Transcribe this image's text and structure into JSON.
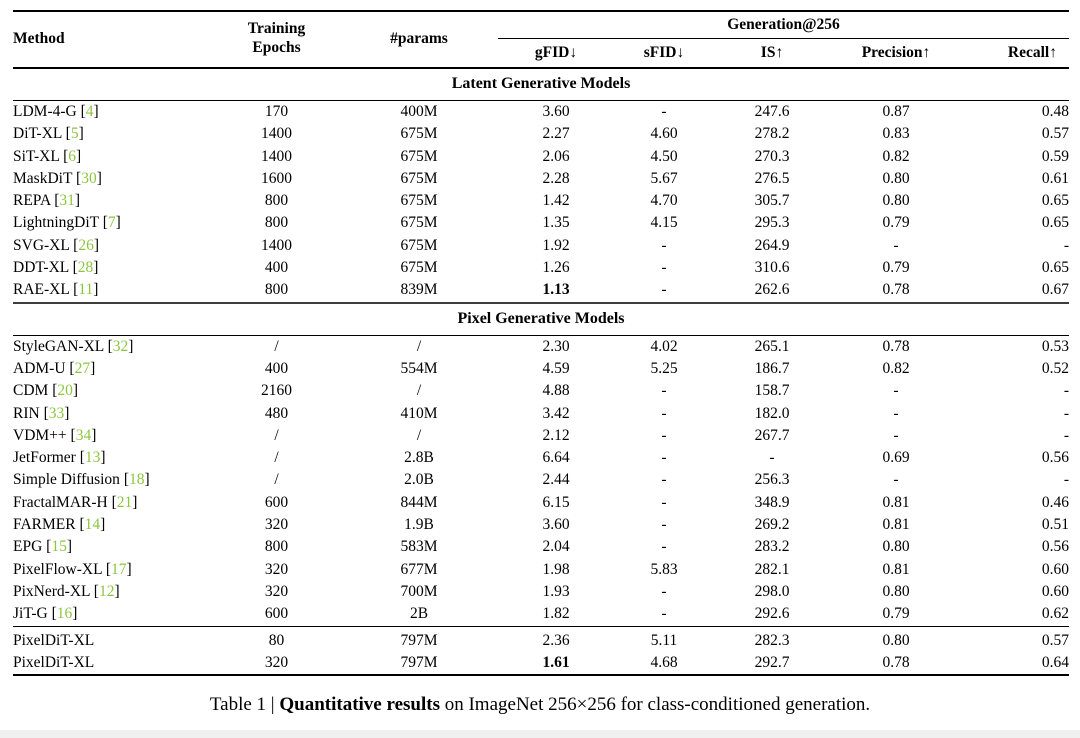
{
  "table": {
    "columns": {
      "method": "Method",
      "epochs": "Training\nEpochs",
      "params": "#params",
      "group": "Generation@256",
      "sub": [
        "gFID↓",
        "sFID↓",
        "IS↑",
        "Precision↑",
        "Recall↑"
      ]
    },
    "citation_color": "#8cc63f",
    "sections": [
      {
        "title": "Latent Generative Models",
        "heavy_top": false,
        "rows": [
          {
            "method": "LDM-4-G",
            "cite": "4",
            "epochs": "170",
            "params": "400M",
            "gfid": "3.60",
            "sfid": "-",
            "is": "247.6",
            "precision": "0.87",
            "recall": "0.48",
            "bold_gfid": false
          },
          {
            "method": "DiT-XL",
            "cite": "5",
            "epochs": "1400",
            "params": "675M",
            "gfid": "2.27",
            "sfid": "4.60",
            "is": "278.2",
            "precision": "0.83",
            "recall": "0.57",
            "bold_gfid": false
          },
          {
            "method": "SiT-XL",
            "cite": "6",
            "epochs": "1400",
            "params": "675M",
            "gfid": "2.06",
            "sfid": "4.50",
            "is": "270.3",
            "precision": "0.82",
            "recall": "0.59",
            "bold_gfid": false
          },
          {
            "method": "MaskDiT",
            "cite": "30",
            "epochs": "1600",
            "params": "675M",
            "gfid": "2.28",
            "sfid": "5.67",
            "is": "276.5",
            "precision": "0.80",
            "recall": "0.61",
            "bold_gfid": false
          },
          {
            "method": "REPA",
            "cite": "31",
            "epochs": "800",
            "params": "675M",
            "gfid": "1.42",
            "sfid": "4.70",
            "is": "305.7",
            "precision": "0.80",
            "recall": "0.65",
            "bold_gfid": false
          },
          {
            "method": "LightningDiT",
            "cite": "7",
            "epochs": "800",
            "params": "675M",
            "gfid": "1.35",
            "sfid": "4.15",
            "is": "295.3",
            "precision": "0.79",
            "recall": "0.65",
            "bold_gfid": false
          },
          {
            "method": "SVG-XL",
            "cite": "26",
            "epochs": "1400",
            "params": "675M",
            "gfid": "1.92",
            "sfid": "-",
            "is": "264.9",
            "precision": "-",
            "recall": "-",
            "bold_gfid": false
          },
          {
            "method": "DDT-XL",
            "cite": "28",
            "epochs": "400",
            "params": "675M",
            "gfid": "1.26",
            "sfid": "-",
            "is": "310.6",
            "precision": "0.79",
            "recall": "0.65",
            "bold_gfid": false
          },
          {
            "method": "RAE-XL",
            "cite": "11",
            "epochs": "800",
            "params": "839M",
            "gfid": "1.13",
            "sfid": "-",
            "is": "262.6",
            "precision": "0.78",
            "recall": "0.67",
            "bold_gfid": true
          }
        ]
      },
      {
        "title": "Pixel Generative Models",
        "heavy_top": true,
        "rows": [
          {
            "method": "StyleGAN-XL",
            "cite": "32",
            "epochs": "/",
            "params": "/",
            "gfid": "2.30",
            "sfid": "4.02",
            "is": "265.1",
            "precision": "0.78",
            "recall": "0.53",
            "bold_gfid": false
          },
          {
            "method": "ADM-U",
            "cite": "27",
            "epochs": "400",
            "params": "554M",
            "gfid": "4.59",
            "sfid": "5.25",
            "is": "186.7",
            "precision": "0.82",
            "recall": "0.52",
            "bold_gfid": false
          },
          {
            "method": "CDM",
            "cite": "20",
            "epochs": "2160",
            "params": "/",
            "gfid": "4.88",
            "sfid": "-",
            "is": "158.7",
            "precision": "-",
            "recall": "-",
            "bold_gfid": false
          },
          {
            "method": "RIN",
            "cite": "33",
            "epochs": "480",
            "params": "410M",
            "gfid": "3.42",
            "sfid": "-",
            "is": "182.0",
            "precision": "-",
            "recall": "-",
            "bold_gfid": false
          },
          {
            "method": "VDM++",
            "cite": "34",
            "epochs": "/",
            "params": "/",
            "gfid": "2.12",
            "sfid": "-",
            "is": "267.7",
            "precision": "-",
            "recall": "-",
            "bold_gfid": false
          },
          {
            "method": "JetFormer",
            "cite": "13",
            "epochs": "/",
            "params": "2.8B",
            "gfid": "6.64",
            "sfid": "-",
            "is": "-",
            "precision": "0.69",
            "recall": "0.56",
            "bold_gfid": false
          },
          {
            "method": "Simple Diffusion",
            "cite": "18",
            "epochs": "/",
            "params": "2.0B",
            "gfid": "2.44",
            "sfid": "-",
            "is": "256.3",
            "precision": "-",
            "recall": "-",
            "bold_gfid": false
          },
          {
            "method": "FractalMAR-H",
            "cite": "21",
            "epochs": "600",
            "params": "844M",
            "gfid": "6.15",
            "sfid": "-",
            "is": "348.9",
            "precision": "0.81",
            "recall": "0.46",
            "bold_gfid": false
          },
          {
            "method": "FARMER",
            "cite": "14",
            "epochs": "320",
            "params": "1.9B",
            "gfid": "3.60",
            "sfid": "-",
            "is": "269.2",
            "precision": "0.81",
            "recall": "0.51",
            "bold_gfid": false
          },
          {
            "method": "EPG",
            "cite": "15",
            "epochs": "800",
            "params": "583M",
            "gfid": "2.04",
            "sfid": "-",
            "is": "283.2",
            "precision": "0.80",
            "recall": "0.56",
            "bold_gfid": false
          },
          {
            "method": "PixelFlow-XL",
            "cite": "17",
            "epochs": "320",
            "params": "677M",
            "gfid": "1.98",
            "sfid": "5.83",
            "is": "282.1",
            "precision": "0.81",
            "recall": "0.60",
            "bold_gfid": false
          },
          {
            "method": "PixNerd-XL",
            "cite": "12",
            "epochs": "320",
            "params": "700M",
            "gfid": "1.93",
            "sfid": "-",
            "is": "298.0",
            "precision": "0.80",
            "recall": "0.60",
            "bold_gfid": false
          },
          {
            "method": "JiT-G",
            "cite": "16",
            "epochs": "600",
            "params": "2B",
            "gfid": "1.82",
            "sfid": "-",
            "is": "292.6",
            "precision": "0.79",
            "recall": "0.62",
            "bold_gfid": false
          }
        ]
      },
      {
        "title": null,
        "heavy_top": false,
        "thin_top": true,
        "rows": [
          {
            "method": "PixelDiT-XL",
            "cite": null,
            "epochs": "80",
            "params": "797M",
            "gfid": "2.36",
            "sfid": "5.11",
            "is": "282.3",
            "precision": "0.80",
            "recall": "0.57",
            "bold_gfid": false
          },
          {
            "method": "PixelDiT-XL",
            "cite": null,
            "epochs": "320",
            "params": "797M",
            "gfid": "1.61",
            "sfid": "4.68",
            "is": "292.7",
            "precision": "0.78",
            "recall": "0.64",
            "bold_gfid": true
          }
        ]
      }
    ]
  },
  "caption": {
    "prefix": "Table 1 | ",
    "bold": "Quantitative results",
    "suffix": " on ImageNet 256×256 for class-conditioned generation."
  }
}
